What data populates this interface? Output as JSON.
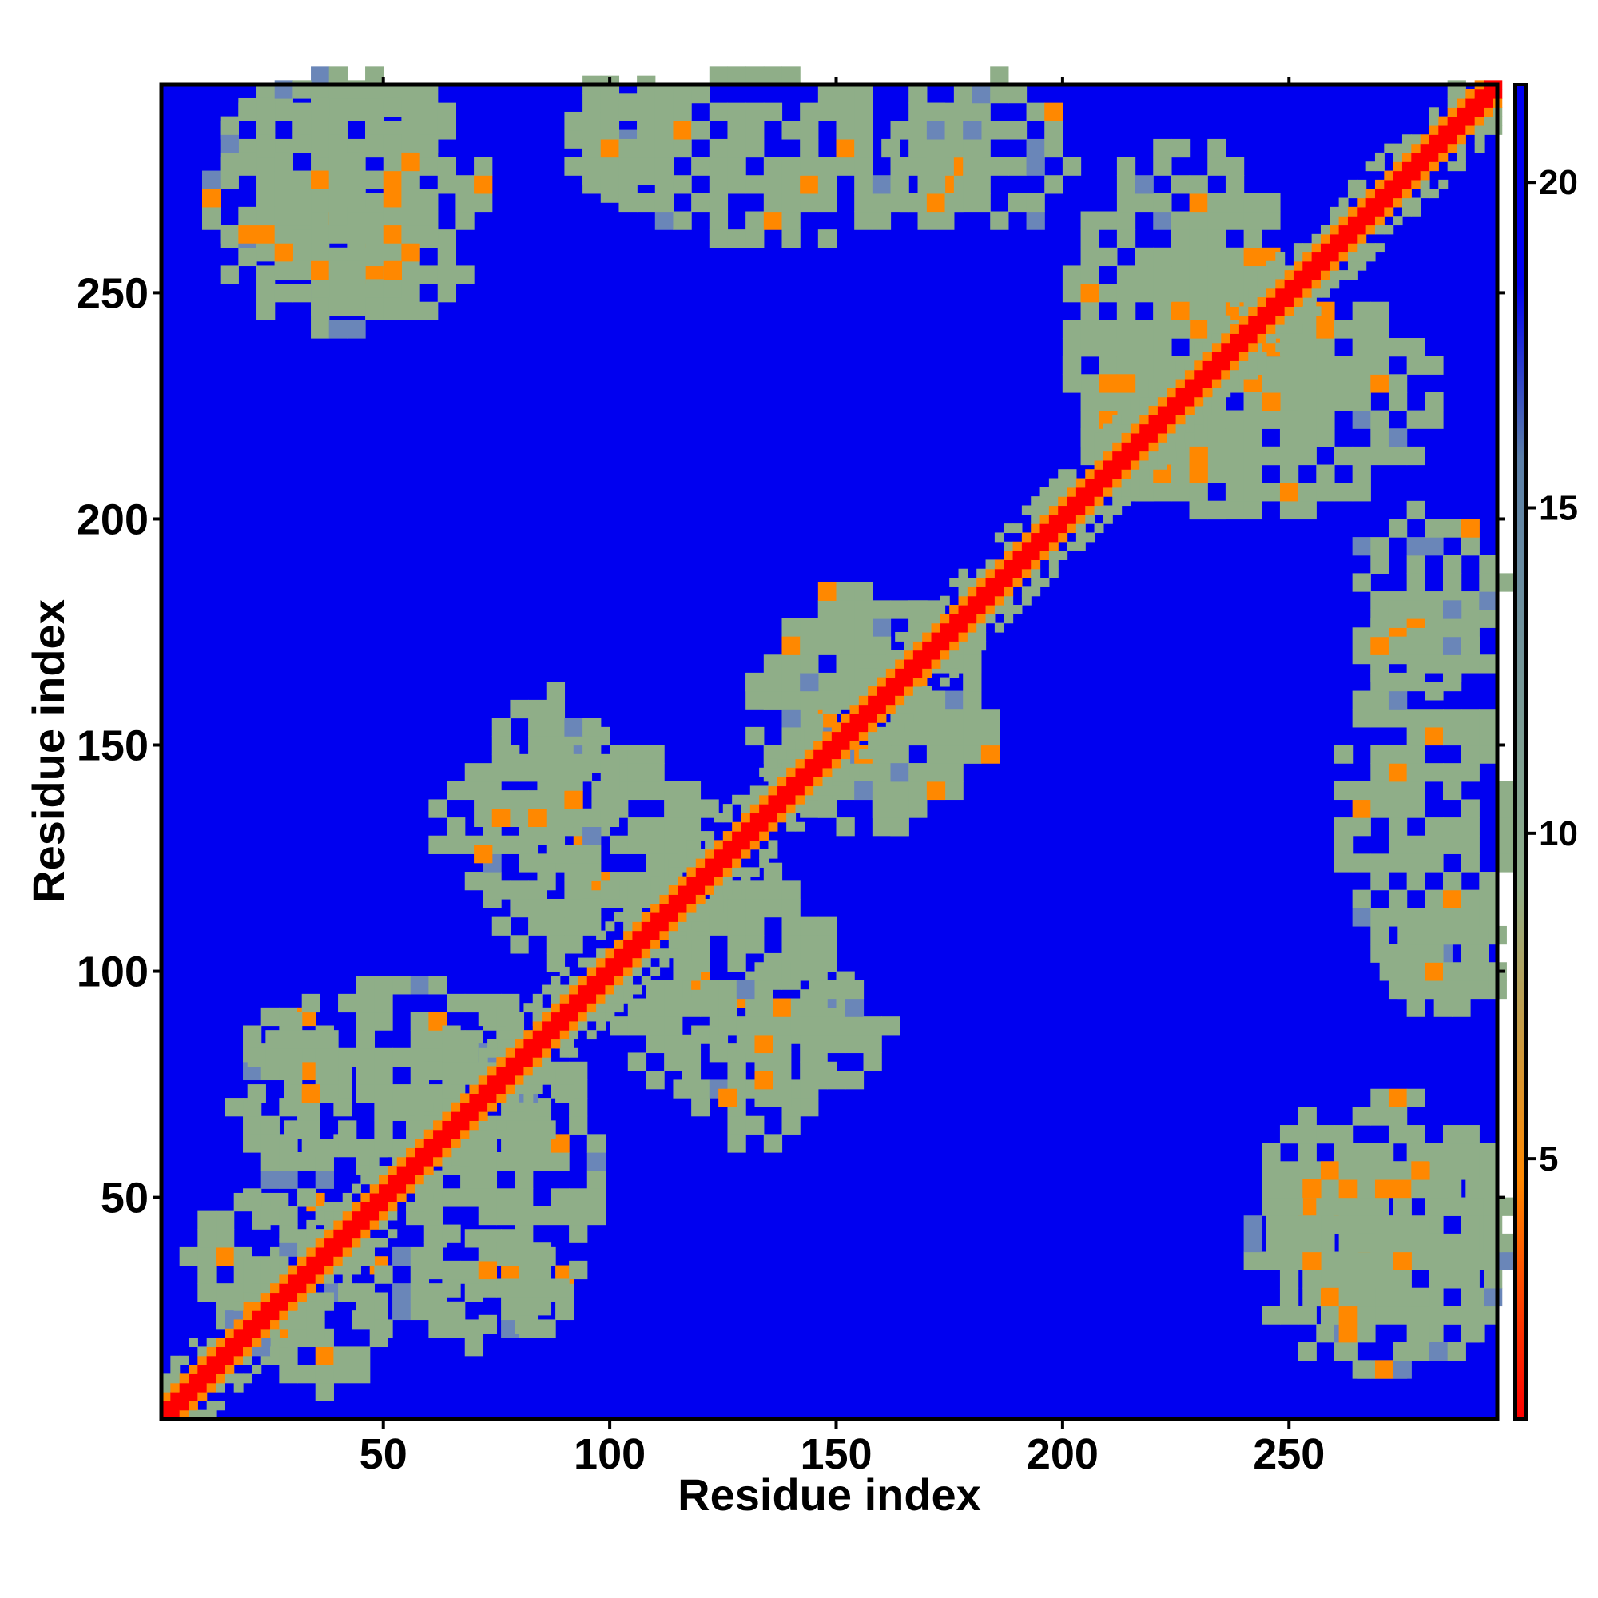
{
  "chart_data": {
    "type": "heatmap",
    "title": "",
    "xlabel": "Residue index",
    "ylabel": "Residue index",
    "xlim": [
      1,
      296
    ],
    "ylim": [
      1,
      296
    ],
    "xticks": [
      50,
      100,
      150,
      200,
      250
    ],
    "yticks": [
      50,
      100,
      150,
      200,
      250
    ],
    "xtick_labels": [
      "50",
      "100",
      "150",
      "200",
      "250"
    ],
    "ytick_labels": [
      "50",
      "100",
      "150",
      "200",
      "250"
    ],
    "grid": false,
    "colorbar": {
      "range": [
        1,
        21.5
      ],
      "ticks": [
        5,
        10,
        15,
        20
      ],
      "tick_labels": [
        "5",
        "10",
        "15",
        "20"
      ],
      "colors": [
        "#ff0000",
        "#ff8800",
        "#8fae88",
        "#5b7fa8",
        "#0000f0"
      ]
    },
    "colors": {
      "background_far": "#0000f0",
      "contact_close": "#ff0000",
      "contact_mid": "#ff8800",
      "contact_moderate": "#8fae88"
    },
    "contact_regions": [
      {
        "x": [
          1,
          296
        ],
        "y": [
          1,
          296
        ],
        "label": "diagonal"
      },
      {
        "x": [
          5,
          40
        ],
        "y": [
          15,
          50
        ]
      },
      {
        "x": [
          40,
          90
        ],
        "y": [
          15,
          40
        ]
      },
      {
        "x": [
          20,
          90
        ],
        "y": [
          55,
          95
        ]
      },
      {
        "x": [
          60,
          120
        ],
        "y": [
          110,
          150
        ]
      },
      {
        "x": [
          100,
          160
        ],
        "y": [
          70,
          100
        ]
      },
      {
        "x": [
          130,
          185
        ],
        "y": [
          130,
          180
        ]
      },
      {
        "x": [
          200,
          280
        ],
        "y": [
          200,
          250
        ]
      },
      {
        "x": [
          240,
          296
        ],
        "y": [
          10,
          70
        ]
      },
      {
        "x": [
          10,
          60
        ],
        "y": [
          245,
          296
        ]
      },
      {
        "x": [
          90,
          110
        ],
        "y": [
          270,
          296
        ]
      },
      {
        "x": [
          160,
          200
        ],
        "y": [
          260,
          296
        ]
      },
      {
        "x": [
          260,
          296
        ],
        "y": [
          90,
          180
        ]
      }
    ]
  }
}
